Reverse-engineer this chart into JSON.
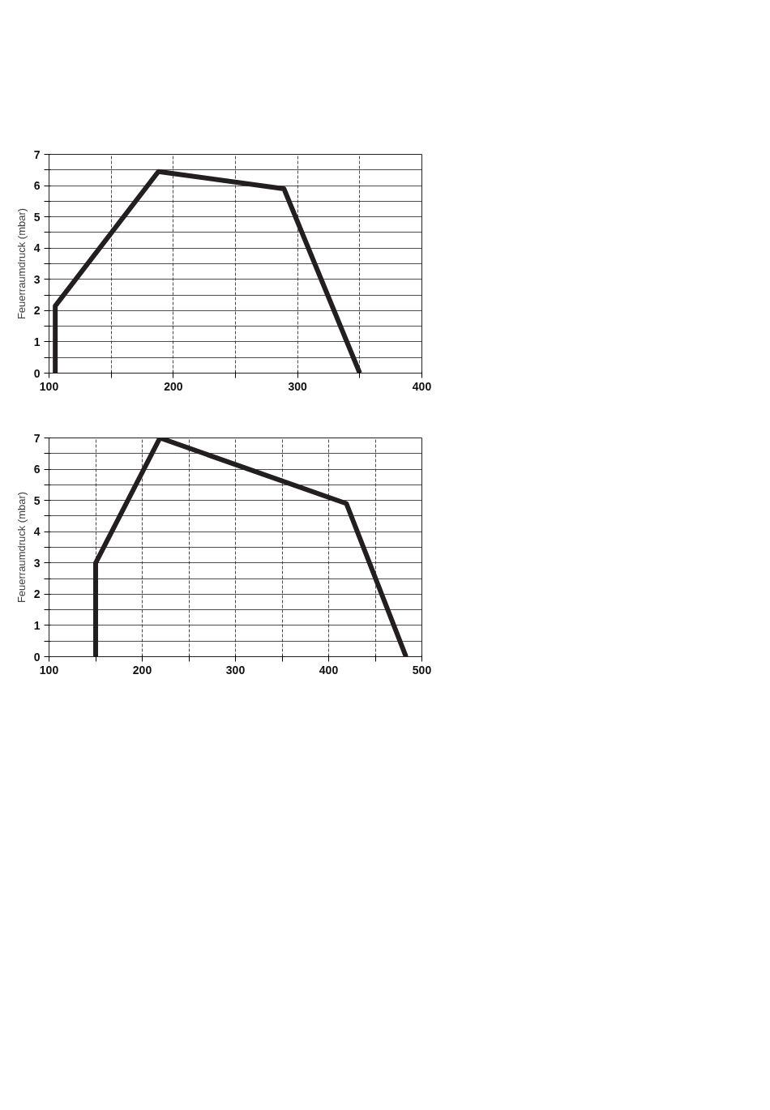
{
  "chart_data": [
    {
      "type": "line",
      "ylabel": "Feuerraumdruck (mbar)",
      "x": [
        105,
        105,
        188,
        289,
        350
      ],
      "series": [
        {
          "color": "#231f20",
          "values": [
            0,
            2.15,
            6.45,
            5.9,
            0
          ]
        }
      ],
      "xlim": [
        100,
        400
      ],
      "ylim": [
        0,
        7
      ],
      "xticks": [
        100,
        {
          "value": 150,
          "label": null
        },
        200,
        {
          "value": 250,
          "label": null
        },
        300,
        {
          "value": 350,
          "label": null
        },
        400
      ],
      "yticks": [
        0,
        {
          "value": 0.5,
          "label": null
        },
        1,
        {
          "value": 1.5,
          "label": null
        },
        2,
        {
          "value": 2.5,
          "label": null
        },
        3,
        {
          "value": 3.5,
          "label": null
        },
        4,
        {
          "value": 4.5,
          "label": null
        },
        5,
        {
          "value": 5.5,
          "label": null
        },
        6,
        {
          "value": 6.5,
          "label": null
        },
        7
      ],
      "grid": true
    },
    {
      "type": "line",
      "ylabel": "Feuerraumdruck (mbar)",
      "x": [
        150,
        150,
        219,
        419,
        483
      ],
      "series": [
        {
          "color": "#231f20",
          "values": [
            0,
            3.0,
            7.0,
            4.9,
            0
          ]
        }
      ],
      "xlim": [
        100,
        500
      ],
      "ylim": [
        0,
        7
      ],
      "xticks": [
        100,
        {
          "value": 150,
          "label": null
        },
        200,
        {
          "value": 250,
          "label": null
        },
        300,
        {
          "value": 350,
          "label": null
        },
        400,
        {
          "value": 450,
          "label": null
        },
        500
      ],
      "yticks": [
        0,
        {
          "value": 0.5,
          "label": null
        },
        1,
        {
          "value": 1.5,
          "label": null
        },
        2,
        {
          "value": 2.5,
          "label": null
        },
        3,
        {
          "value": 3.5,
          "label": null
        },
        4,
        {
          "value": 4.5,
          "label": null
        },
        5,
        {
          "value": 5.5,
          "label": null
        },
        6,
        {
          "value": 6.5,
          "label": null
        },
        7
      ],
      "grid": true
    }
  ]
}
